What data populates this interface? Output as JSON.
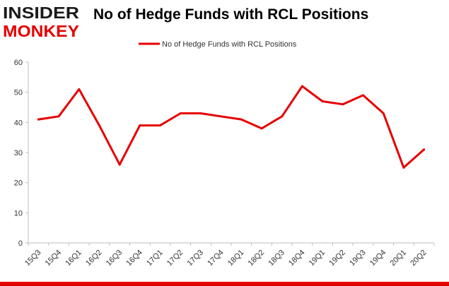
{
  "logo": {
    "line1": "INSIDER",
    "line2": "MONKEY",
    "colors": {
      "dark": "#1a1a1a",
      "accent": "#e60000"
    }
  },
  "chart_data": {
    "type": "line",
    "title": "No of Hedge Funds with RCL Positions",
    "xlabel": "",
    "ylabel": "",
    "categories": [
      "15Q3",
      "15Q4",
      "16Q1",
      "16Q2",
      "16Q3",
      "16Q4",
      "17Q1",
      "17Q2",
      "17Q3",
      "17Q4",
      "18Q1",
      "18Q2",
      "18Q3",
      "18Q4",
      "19Q1",
      "19Q2",
      "19Q3",
      "19Q4",
      "20Q1",
      "20Q2"
    ],
    "series": [
      {
        "name": "No of Hedge Funds with RCL Positions",
        "color": "#e60000",
        "values": [
          41,
          42,
          51,
          39,
          26,
          39,
          39,
          43,
          43,
          42,
          41,
          38,
          42,
          52,
          47,
          46,
          49,
          43,
          25,
          31
        ]
      }
    ],
    "ylim": [
      0,
      60
    ],
    "yticks": [
      0,
      10,
      20,
      30,
      40,
      50,
      60
    ],
    "grid": false,
    "legend_position": "top-center"
  }
}
